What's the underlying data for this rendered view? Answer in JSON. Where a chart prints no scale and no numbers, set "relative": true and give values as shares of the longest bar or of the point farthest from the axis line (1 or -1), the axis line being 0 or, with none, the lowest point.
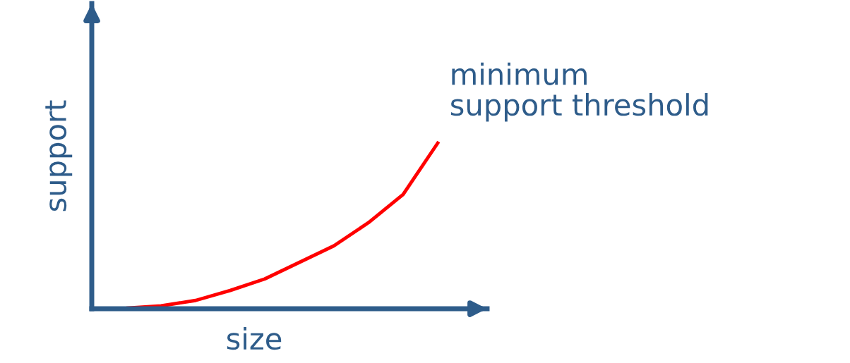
{
  "chart_data": {
    "type": "line",
    "relative": true,
    "xlabel": "size",
    "ylabel": "support",
    "categories": [
      null,
      null,
      null,
      null,
      null,
      null,
      null,
      null,
      null,
      null,
      null
    ],
    "series": [
      {
        "name": "minimum\nsupport threshold",
        "color": "#ff0000",
        "values": [
          0,
          0.004,
          0.017,
          0.05,
          0.11,
          0.18,
          0.28,
          0.38,
          0.52,
          0.69,
          1
        ]
      }
    ],
    "legend": false,
    "marker": "none",
    "line_style": "solid"
  }
}
